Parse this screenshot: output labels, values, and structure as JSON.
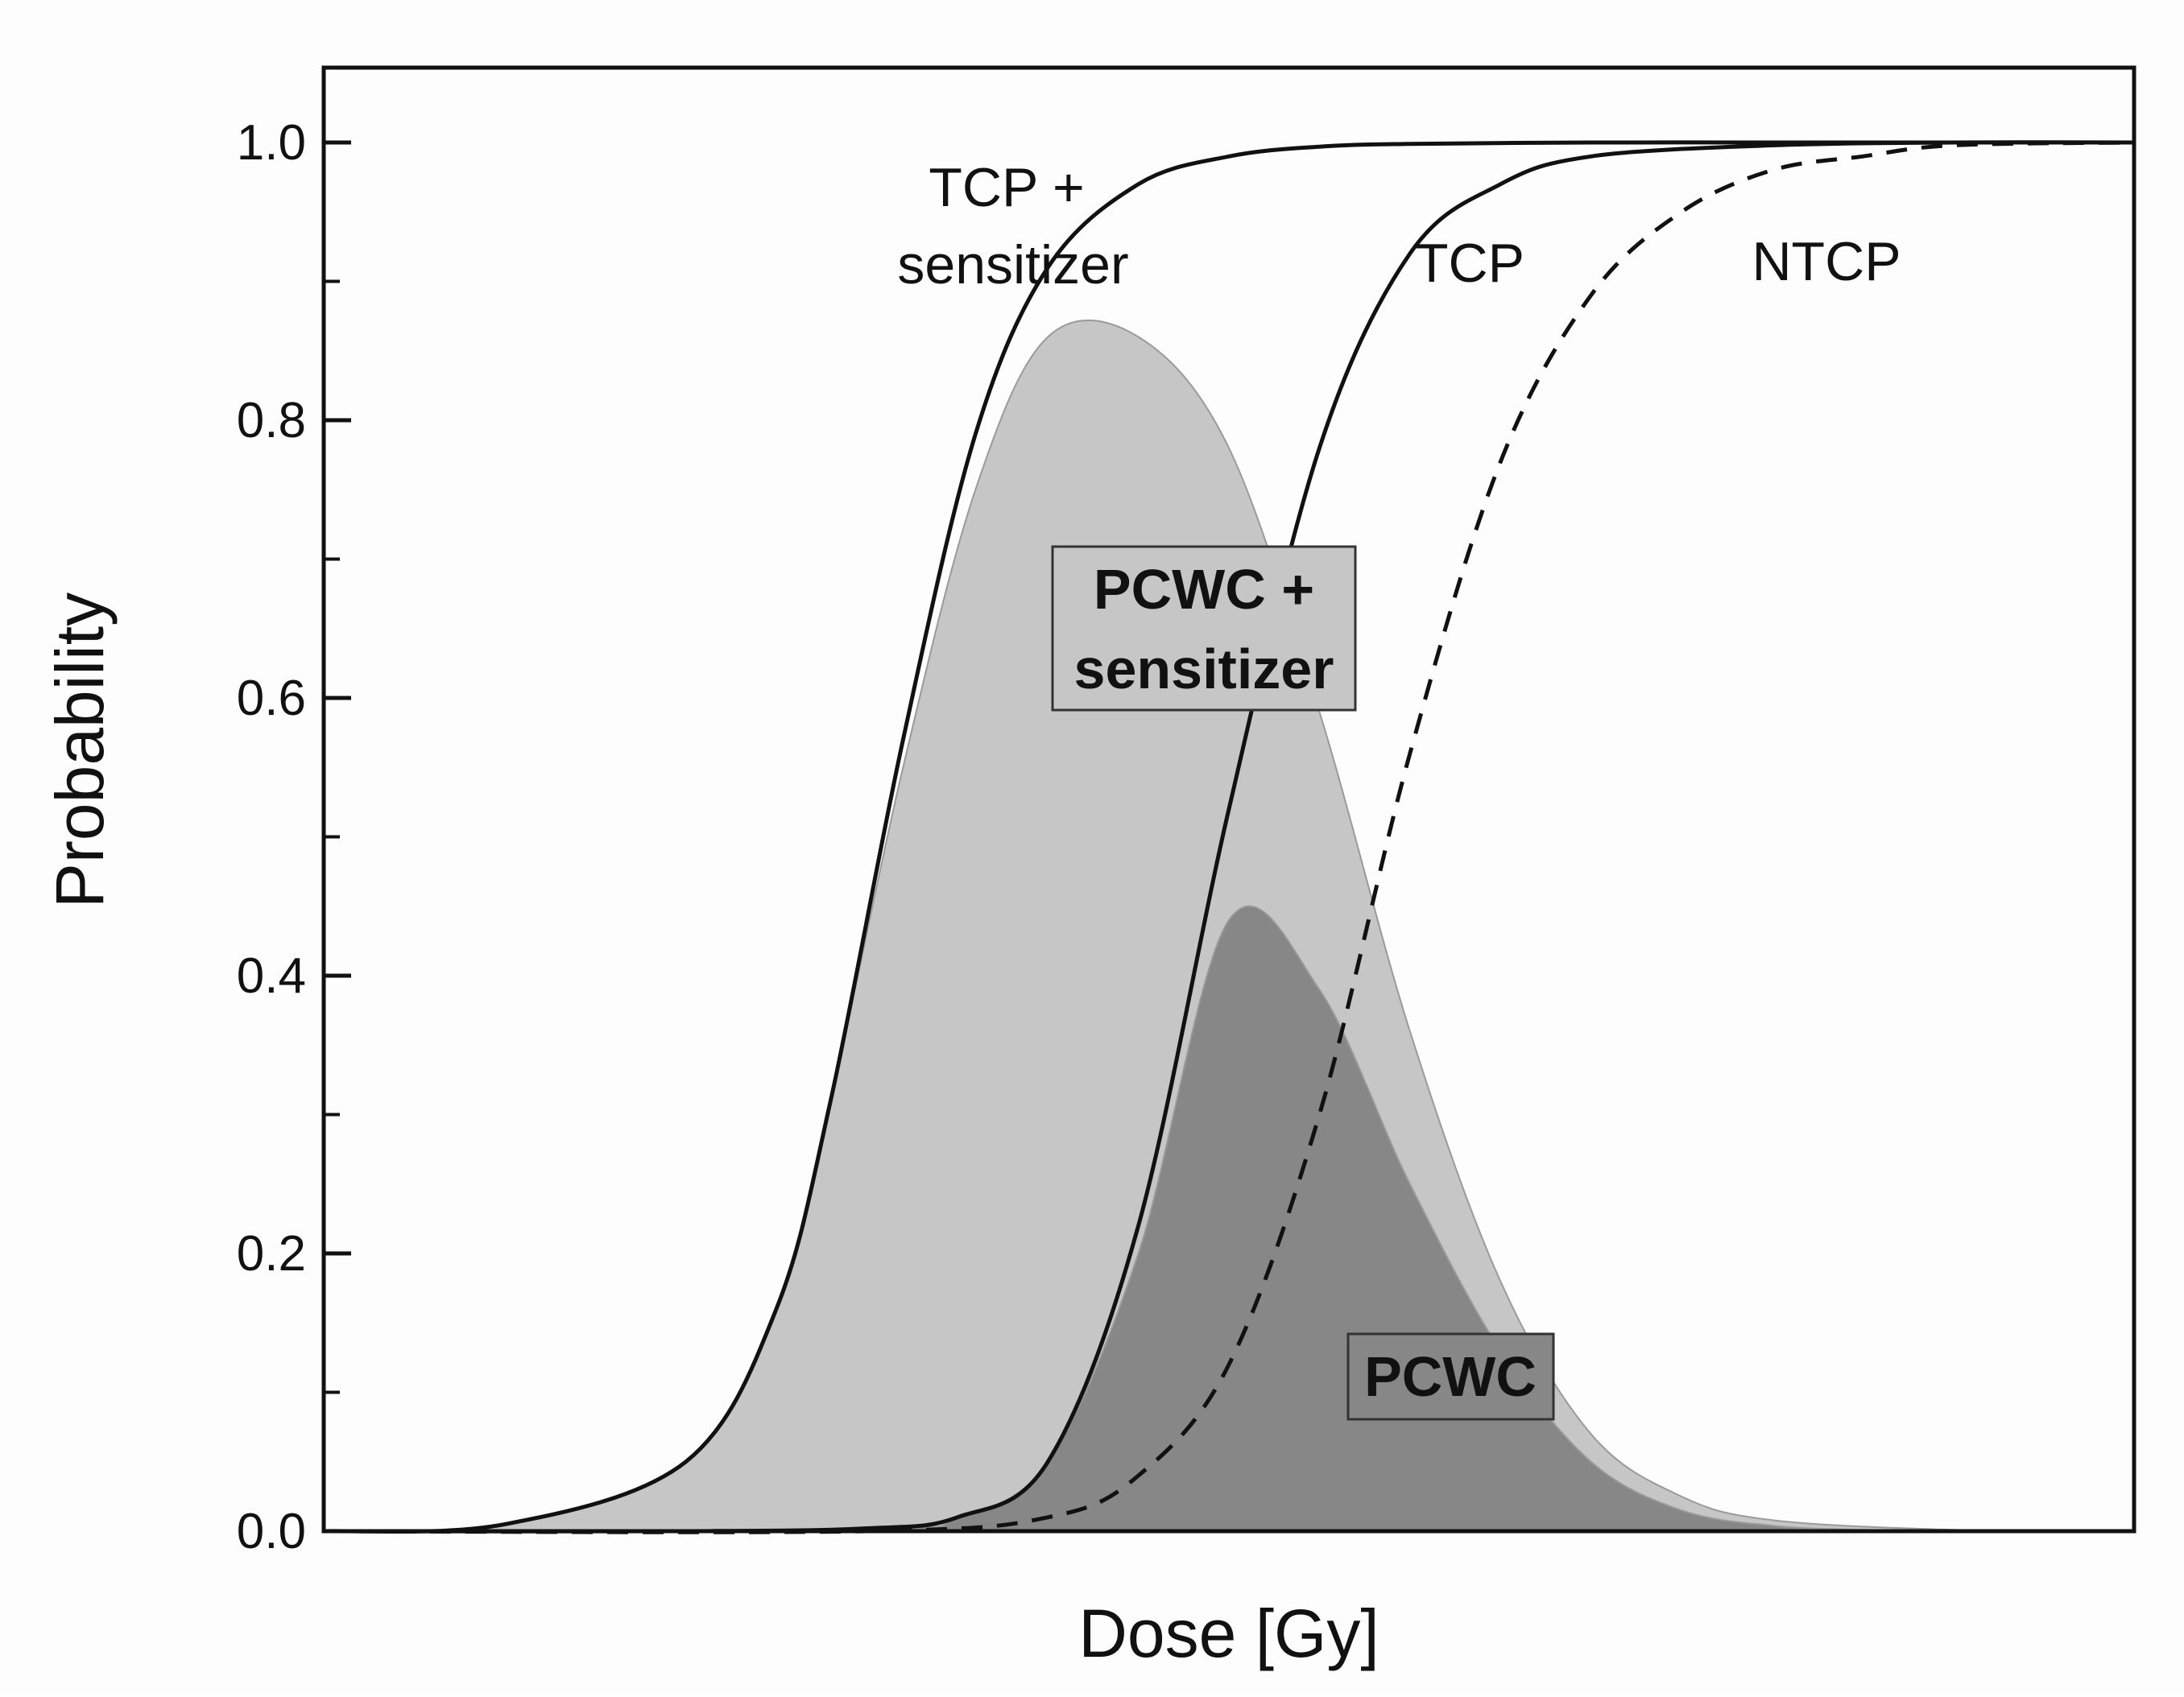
{
  "chart_data": {
    "type": "area",
    "title": "",
    "xlabel": "Dose [Gy]",
    "ylabel": "Probability",
    "xlim": [
      0,
      100
    ],
    "ylim": [
      0,
      1.05
    ],
    "x_tick_labels": [],
    "y_ticks": [
      0.0,
      0.2,
      0.4,
      0.6,
      0.8,
      1.0
    ],
    "y_tick_labels": [
      "0.0",
      "0.2",
      "0.4",
      "0.6",
      "0.8",
      "1.0"
    ],
    "grid": false,
    "legend": "none",
    "series": [
      {
        "name": "TCP + sensitizer",
        "style": "solid",
        "x": [
          0,
          10,
          20,
          25,
          28,
          32,
          36,
          40,
          45,
          50,
          55,
          60,
          70,
          80,
          90,
          100
        ],
        "values": [
          0.0,
          0.005,
          0.05,
          0.16,
          0.31,
          0.57,
          0.79,
          0.91,
          0.97,
          0.99,
          0.997,
          0.999,
          1.0,
          1.0,
          1.0,
          1.0
        ]
      },
      {
        "name": "TCP",
        "style": "solid",
        "x": [
          0,
          20,
          30,
          35,
          40,
          45,
          50,
          55,
          60,
          65,
          70,
          80,
          90,
          100
        ],
        "values": [
          0.0,
          0.0,
          0.002,
          0.01,
          0.05,
          0.22,
          0.52,
          0.78,
          0.92,
          0.97,
          0.99,
          0.998,
          1.0,
          1.0
        ]
      },
      {
        "name": "NTCP",
        "style": "dashed",
        "x": [
          0,
          30,
          40,
          45,
          50,
          55,
          60,
          65,
          70,
          75,
          80,
          85,
          90,
          100
        ],
        "values": [
          0.0,
          0.0,
          0.01,
          0.04,
          0.12,
          0.3,
          0.56,
          0.77,
          0.89,
          0.95,
          0.98,
          0.99,
          0.998,
          1.0
        ]
      },
      {
        "name": "PCWC + sensitizer",
        "style": "filled",
        "fill": "#c6c6c6",
        "x": [
          0,
          10,
          20,
          25,
          28,
          32,
          36,
          40,
          45,
          50,
          55,
          60,
          65,
          70,
          75,
          80,
          90,
          100
        ],
        "values": [
          0.0,
          0.005,
          0.05,
          0.16,
          0.31,
          0.55,
          0.75,
          0.86,
          0.86,
          0.78,
          0.59,
          0.36,
          0.18,
          0.07,
          0.025,
          0.008,
          0.001,
          0.0
        ]
      },
      {
        "name": "PCWC",
        "style": "filled",
        "fill": "#878787",
        "x": [
          0,
          30,
          35,
          40,
          45,
          50,
          55,
          60,
          65,
          70,
          75,
          80,
          85,
          90,
          100
        ],
        "values": [
          0.0,
          0.002,
          0.01,
          0.05,
          0.2,
          0.44,
          0.39,
          0.25,
          0.13,
          0.05,
          0.015,
          0.004,
          0.001,
          0.0,
          0.0
        ]
      }
    ],
    "annotations": {
      "tcp_sensitizer_line1": "TCP +",
      "tcp_sensitizer_line2": "sensitizer",
      "tcp": "TCP",
      "ntcp": "NTCP",
      "pcwc_sensitizer_line1": "PCWC +",
      "pcwc_sensitizer_line2": "sensitizer",
      "pcwc": "PCWC"
    }
  },
  "colors": {
    "background": "#fdfdfd",
    "plot_background": "#fdfdfd",
    "axis": "#111111",
    "curve": "#111111",
    "pcwc_sensitizer_fill": "#c6c6c6",
    "pcwc_fill": "#878787"
  }
}
